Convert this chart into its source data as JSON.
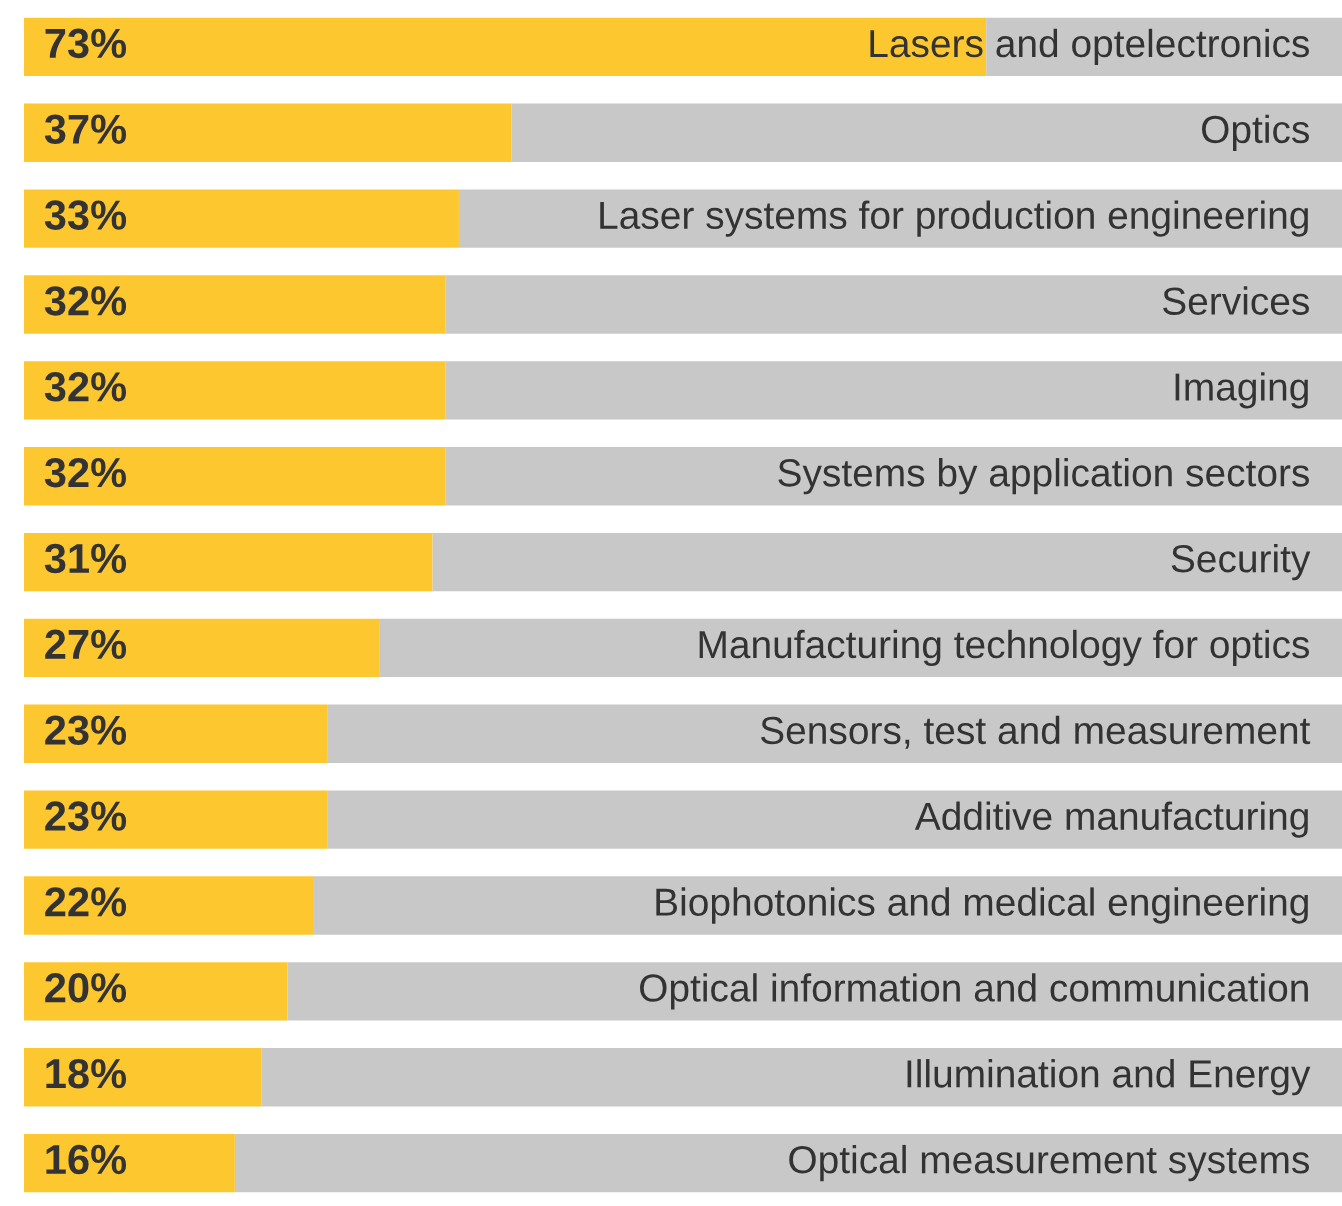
{
  "chart_data": {
    "type": "bar",
    "orientation": "horizontal",
    "stacked": true,
    "categories": [
      "Lasers and optelectronics",
      "Optics",
      "Laser systems for production engineering",
      "Services",
      "Imaging",
      "Systems by application sectors",
      "Security",
      "Manufacturing technology for optics",
      "Sensors, test and measurement",
      "Additive manufacturing",
      "Biophotonics and medical engineering",
      "Optical information and communication",
      "Illumination and Energy",
      "Optical measurement systems"
    ],
    "series": [
      {
        "color": "#fdc82f",
        "values": [
          73,
          37,
          33,
          32,
          32,
          32,
          31,
          27,
          23,
          23,
          22,
          20,
          18,
          16
        ],
        "value_labels": [
          "73%",
          "37%",
          "33%",
          "32%",
          "32%",
          "32%",
          "31%",
          "27%",
          "23%",
          "23%",
          "22%",
          "20%",
          "18%",
          "16%"
        ]
      },
      {
        "color": "#c8c8c8",
        "values": [
          27,
          63,
          67,
          68,
          68,
          68,
          69,
          73,
          77,
          77,
          78,
          80,
          82,
          84
        ]
      }
    ],
    "xlim": [
      0,
      100
    ],
    "tick_labels": false
  }
}
